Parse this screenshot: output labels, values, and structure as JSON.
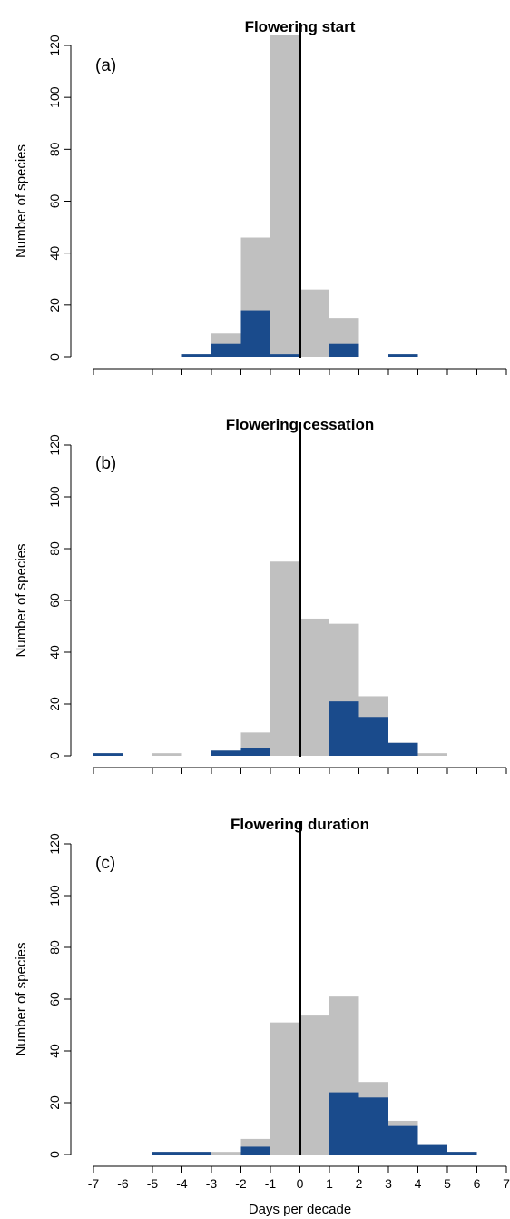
{
  "chart_data": [
    {
      "type": "bar",
      "panel": "(a)",
      "title": "Flowering start",
      "ylabel": "Number of species",
      "xlabel": "",
      "xlim": [
        -7,
        7
      ],
      "ylim": [
        0,
        130
      ],
      "yticks": [
        0,
        20,
        40,
        60,
        80,
        100,
        120
      ],
      "xticks": [
        -7,
        -6,
        -5,
        -4,
        -3,
        -2,
        -1,
        0,
        1,
        2,
        3,
        4,
        5,
        6,
        7
      ],
      "xtick_labels_shown": false,
      "bin_width": 1,
      "colors": {
        "all": "#c0c0c0",
        "significant": "#1a4b8c",
        "zero_line": "#000000"
      },
      "series": [
        {
          "role": "all",
          "bins": [
            {
              "x0": -4,
              "value": 1
            },
            {
              "x0": -3,
              "value": 9
            },
            {
              "x0": -2,
              "value": 46
            },
            {
              "x0": -1,
              "value": 124
            },
            {
              "x0": 0,
              "value": 26
            },
            {
              "x0": 1,
              "value": 15
            },
            {
              "x0": 3,
              "value": 1
            }
          ]
        },
        {
          "role": "significant",
          "bins": [
            {
              "x0": -4,
              "value": 1
            },
            {
              "x0": -3,
              "value": 5
            },
            {
              "x0": -2,
              "value": 18
            },
            {
              "x0": -1,
              "value": 1
            },
            {
              "x0": 1,
              "value": 5
            },
            {
              "x0": 3,
              "value": 1
            }
          ]
        }
      ]
    },
    {
      "type": "bar",
      "panel": "(b)",
      "title": "Flowering cessation",
      "ylabel": "Number of species",
      "xlabel": "",
      "xlim": [
        -7,
        7
      ],
      "ylim": [
        0,
        130
      ],
      "yticks": [
        0,
        20,
        40,
        60,
        80,
        100,
        120
      ],
      "xticks": [
        -7,
        -6,
        -5,
        -4,
        -3,
        -2,
        -1,
        0,
        1,
        2,
        3,
        4,
        5,
        6,
        7
      ],
      "xtick_labels_shown": false,
      "bin_width": 1,
      "colors": {
        "all": "#c0c0c0",
        "significant": "#1a4b8c",
        "zero_line": "#000000"
      },
      "series": [
        {
          "role": "all",
          "bins": [
            {
              "x0": -7,
              "value": 1
            },
            {
              "x0": -5,
              "value": 1
            },
            {
              "x0": -3,
              "value": 2
            },
            {
              "x0": -2,
              "value": 9
            },
            {
              "x0": -1,
              "value": 75
            },
            {
              "x0": 0,
              "value": 53
            },
            {
              "x0": 1,
              "value": 51
            },
            {
              "x0": 2,
              "value": 23
            },
            {
              "x0": 3,
              "value": 5
            },
            {
              "x0": 4,
              "value": 1
            }
          ]
        },
        {
          "role": "significant",
          "bins": [
            {
              "x0": -7,
              "value": 1
            },
            {
              "x0": -3,
              "value": 2
            },
            {
              "x0": -2,
              "value": 3
            },
            {
              "x0": 1,
              "value": 21
            },
            {
              "x0": 2,
              "value": 15
            },
            {
              "x0": 3,
              "value": 5
            }
          ]
        }
      ]
    },
    {
      "type": "bar",
      "panel": "(c)",
      "title": "Flowering duration",
      "ylabel": "Number of species",
      "xlabel": "Days per decade",
      "xlim": [
        -7,
        7
      ],
      "ylim": [
        0,
        130
      ],
      "yticks": [
        0,
        20,
        40,
        60,
        80,
        100,
        120
      ],
      "xticks": [
        -7,
        -6,
        -5,
        -4,
        -3,
        -2,
        -1,
        0,
        1,
        2,
        3,
        4,
        5,
        6,
        7
      ],
      "xtick_labels_shown": true,
      "bin_width": 1,
      "colors": {
        "all": "#c0c0c0",
        "significant": "#1a4b8c",
        "zero_line": "#000000"
      },
      "series": [
        {
          "role": "all",
          "bins": [
            {
              "x0": -5,
              "value": 1
            },
            {
              "x0": -4,
              "value": 1
            },
            {
              "x0": -3,
              "value": 1
            },
            {
              "x0": -2,
              "value": 6
            },
            {
              "x0": -1,
              "value": 51
            },
            {
              "x0": 0,
              "value": 54
            },
            {
              "x0": 1,
              "value": 61
            },
            {
              "x0": 2,
              "value": 28
            },
            {
              "x0": 3,
              "value": 13
            },
            {
              "x0": 4,
              "value": 4
            },
            {
              "x0": 5,
              "value": 1
            }
          ]
        },
        {
          "role": "significant",
          "bins": [
            {
              "x0": -5,
              "value": 1
            },
            {
              "x0": -4,
              "value": 1
            },
            {
              "x0": -2,
              "value": 3
            },
            {
              "x0": 1,
              "value": 24
            },
            {
              "x0": 2,
              "value": 22
            },
            {
              "x0": 3,
              "value": 11
            },
            {
              "x0": 4,
              "value": 4
            },
            {
              "x0": 5,
              "value": 1
            }
          ]
        }
      ]
    }
  ]
}
